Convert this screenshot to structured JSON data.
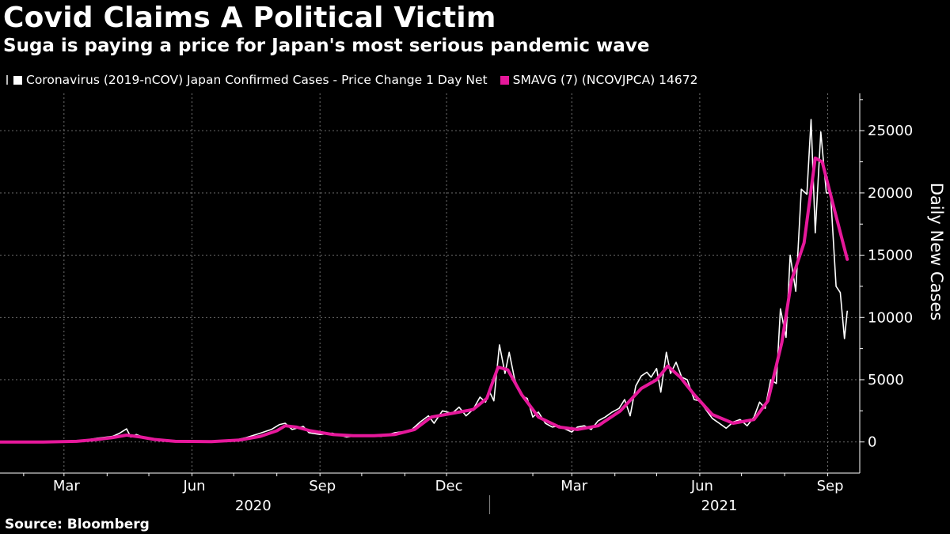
{
  "title": "Covid Claims A Political Victim",
  "subtitle": "Suga is paying a price for Japan's most serious pandemic wave",
  "legend": {
    "series1": "Coronavirus (2019-nCOV) Japan Confirmed Cases - Price Change 1 Day Net",
    "series2": "SMAVG (7)  (NCOVJPCA) 14672"
  },
  "source": "Source: Bloomberg",
  "colors": {
    "background": "#000000",
    "daily": "#ffffff",
    "average": "#e6189b",
    "grid": "#7a7a7a"
  },
  "chart_data": {
    "type": "line",
    "xlabel": "",
    "ylabel": "Daily New Cases",
    "ylim": [
      -2500,
      28000
    ],
    "y_ticks": [
      0,
      5000,
      10000,
      15000,
      20000,
      25000
    ],
    "x_month_ticks": [
      "Mar",
      "Jun",
      "Sep",
      "Dec",
      "Mar",
      "Jun",
      "Sep"
    ],
    "x_year_labels": [
      "2020",
      "2021"
    ],
    "series": [
      {
        "name": "Coronavirus (2019-nCOV) Japan Confirmed Cases - Price Change 1 Day Net",
        "style": "daily",
        "points": [
          [
            "2020-01-15",
            0
          ],
          [
            "2020-02-15",
            10
          ],
          [
            "2020-03-10",
            40
          ],
          [
            "2020-03-25",
            300
          ],
          [
            "2020-04-05",
            450
          ],
          [
            "2020-04-10",
            700
          ],
          [
            "2020-04-15",
            1050
          ],
          [
            "2020-04-18",
            400
          ],
          [
            "2020-04-22",
            600
          ],
          [
            "2020-04-30",
            250
          ],
          [
            "2020-05-10",
            100
          ],
          [
            "2020-05-25",
            30
          ],
          [
            "2020-06-10",
            20
          ],
          [
            "2020-06-30",
            90
          ],
          [
            "2020-07-10",
            350
          ],
          [
            "2020-07-20",
            700
          ],
          [
            "2020-07-28",
            1000
          ],
          [
            "2020-08-03",
            1400
          ],
          [
            "2020-08-07",
            1500
          ],
          [
            "2020-08-12",
            1000
          ],
          [
            "2020-08-20",
            1250
          ],
          [
            "2020-08-24",
            750
          ],
          [
            "2020-09-01",
            600
          ],
          [
            "2020-09-10",
            700
          ],
          [
            "2020-09-20",
            400
          ],
          [
            "2020-10-01",
            550
          ],
          [
            "2020-10-15",
            450
          ],
          [
            "2020-10-25",
            750
          ],
          [
            "2020-11-05",
            900
          ],
          [
            "2020-11-12",
            1600
          ],
          [
            "2020-11-18",
            2100
          ],
          [
            "2020-11-22",
            1500
          ],
          [
            "2020-11-28",
            2500
          ],
          [
            "2020-12-05",
            2300
          ],
          [
            "2020-12-10",
            2800
          ],
          [
            "2020-12-15",
            2100
          ],
          [
            "2020-12-20",
            2600
          ],
          [
            "2020-12-25",
            3600
          ],
          [
            "2020-12-29",
            3200
          ],
          [
            "2021-01-01",
            4000
          ],
          [
            "2021-01-04",
            3300
          ],
          [
            "2021-01-08",
            7800
          ],
          [
            "2021-01-12",
            5500
          ],
          [
            "2021-01-15",
            7200
          ],
          [
            "2021-01-19",
            5000
          ],
          [
            "2021-01-24",
            3700
          ],
          [
            "2021-01-28",
            3500
          ],
          [
            "2021-02-01",
            2000
          ],
          [
            "2021-02-05",
            2400
          ],
          [
            "2021-02-10",
            1500
          ],
          [
            "2021-02-15",
            1200
          ],
          [
            "2021-02-20",
            1300
          ],
          [
            "2021-02-25",
            1000
          ],
          [
            "2021-03-01",
            800
          ],
          [
            "2021-03-05",
            1200
          ],
          [
            "2021-03-10",
            1300
          ],
          [
            "2021-03-15",
            1000
          ],
          [
            "2021-03-20",
            1700
          ],
          [
            "2021-03-25",
            2000
          ],
          [
            "2021-03-30",
            2400
          ],
          [
            "2021-04-04",
            2700
          ],
          [
            "2021-04-08",
            3400
          ],
          [
            "2021-04-12",
            2100
          ],
          [
            "2021-04-16",
            4500
          ],
          [
            "2021-04-20",
            5300
          ],
          [
            "2021-04-24",
            5600
          ],
          [
            "2021-04-27",
            5200
          ],
          [
            "2021-05-01",
            5900
          ],
          [
            "2021-05-04",
            4000
          ],
          [
            "2021-05-08",
            7200
          ],
          [
            "2021-05-11",
            5500
          ],
          [
            "2021-05-15",
            6400
          ],
          [
            "2021-05-19",
            5200
          ],
          [
            "2021-05-23",
            5000
          ],
          [
            "2021-05-28",
            3400
          ],
          [
            "2021-06-01",
            3300
          ],
          [
            "2021-06-06",
            2500
          ],
          [
            "2021-06-10",
            1900
          ],
          [
            "2021-06-15",
            1500
          ],
          [
            "2021-06-20",
            1100
          ],
          [
            "2021-06-25",
            1600
          ],
          [
            "2021-06-30",
            1800
          ],
          [
            "2021-07-05",
            1300
          ],
          [
            "2021-07-10",
            2000
          ],
          [
            "2021-07-14",
            3200
          ],
          [
            "2021-07-18",
            2700
          ],
          [
            "2021-07-22",
            5000
          ],
          [
            "2021-07-26",
            4700
          ],
          [
            "2021-07-29",
            10700
          ],
          [
            "2021-08-02",
            8400
          ],
          [
            "2021-08-05",
            15000
          ],
          [
            "2021-08-09",
            12100
          ],
          [
            "2021-08-13",
            20300
          ],
          [
            "2021-08-17",
            19900
          ],
          [
            "2021-08-20",
            25900
          ],
          [
            "2021-08-23",
            16800
          ],
          [
            "2021-08-27",
            24900
          ],
          [
            "2021-08-31",
            20000
          ],
          [
            "2021-09-03",
            20000
          ],
          [
            "2021-09-07",
            12500
          ],
          [
            "2021-09-10",
            12000
          ],
          [
            "2021-09-13",
            8300
          ],
          [
            "2021-09-15",
            10500
          ]
        ]
      },
      {
        "name": "SMAVG (7)  (NCOVJPCA) 14672",
        "style": "average",
        "points": [
          [
            "2020-01-15",
            0
          ],
          [
            "2020-02-15",
            0
          ],
          [
            "2020-03-10",
            50
          ],
          [
            "2020-03-25",
            200
          ],
          [
            "2020-04-05",
            350
          ],
          [
            "2020-04-15",
            550
          ],
          [
            "2020-04-25",
            400
          ],
          [
            "2020-05-05",
            200
          ],
          [
            "2020-05-20",
            50
          ],
          [
            "2020-06-15",
            30
          ],
          [
            "2020-07-05",
            150
          ],
          [
            "2020-07-20",
            450
          ],
          [
            "2020-08-01",
            900
          ],
          [
            "2020-08-07",
            1300
          ],
          [
            "2020-08-15",
            1200
          ],
          [
            "2020-08-25",
            900
          ],
          [
            "2020-09-10",
            600
          ],
          [
            "2020-09-25",
            500
          ],
          [
            "2020-10-10",
            500
          ],
          [
            "2020-10-25",
            600
          ],
          [
            "2020-11-08",
            1000
          ],
          [
            "2020-11-20",
            2000
          ],
          [
            "2020-12-05",
            2300
          ],
          [
            "2020-12-20",
            2600
          ],
          [
            "2020-12-30",
            3500
          ],
          [
            "2021-01-07",
            6000
          ],
          [
            "2021-01-14",
            5800
          ],
          [
            "2021-01-24",
            3800
          ],
          [
            "2021-02-05",
            2000
          ],
          [
            "2021-02-20",
            1200
          ],
          [
            "2021-03-05",
            1000
          ],
          [
            "2021-03-20",
            1300
          ],
          [
            "2021-04-05",
            2500
          ],
          [
            "2021-04-20",
            4300
          ],
          [
            "2021-05-01",
            5000
          ],
          [
            "2021-05-09",
            6100
          ],
          [
            "2021-05-18",
            5200
          ],
          [
            "2021-05-28",
            3800
          ],
          [
            "2021-06-10",
            2200
          ],
          [
            "2021-06-25",
            1500
          ],
          [
            "2021-07-10",
            1800
          ],
          [
            "2021-07-20",
            3300
          ],
          [
            "2021-07-30",
            8000
          ],
          [
            "2021-08-06",
            13000
          ],
          [
            "2021-08-15",
            16000
          ],
          [
            "2021-08-23",
            22800
          ],
          [
            "2021-08-28",
            22500
          ],
          [
            "2021-09-05",
            19000
          ],
          [
            "2021-09-15",
            14672
          ]
        ]
      }
    ]
  }
}
